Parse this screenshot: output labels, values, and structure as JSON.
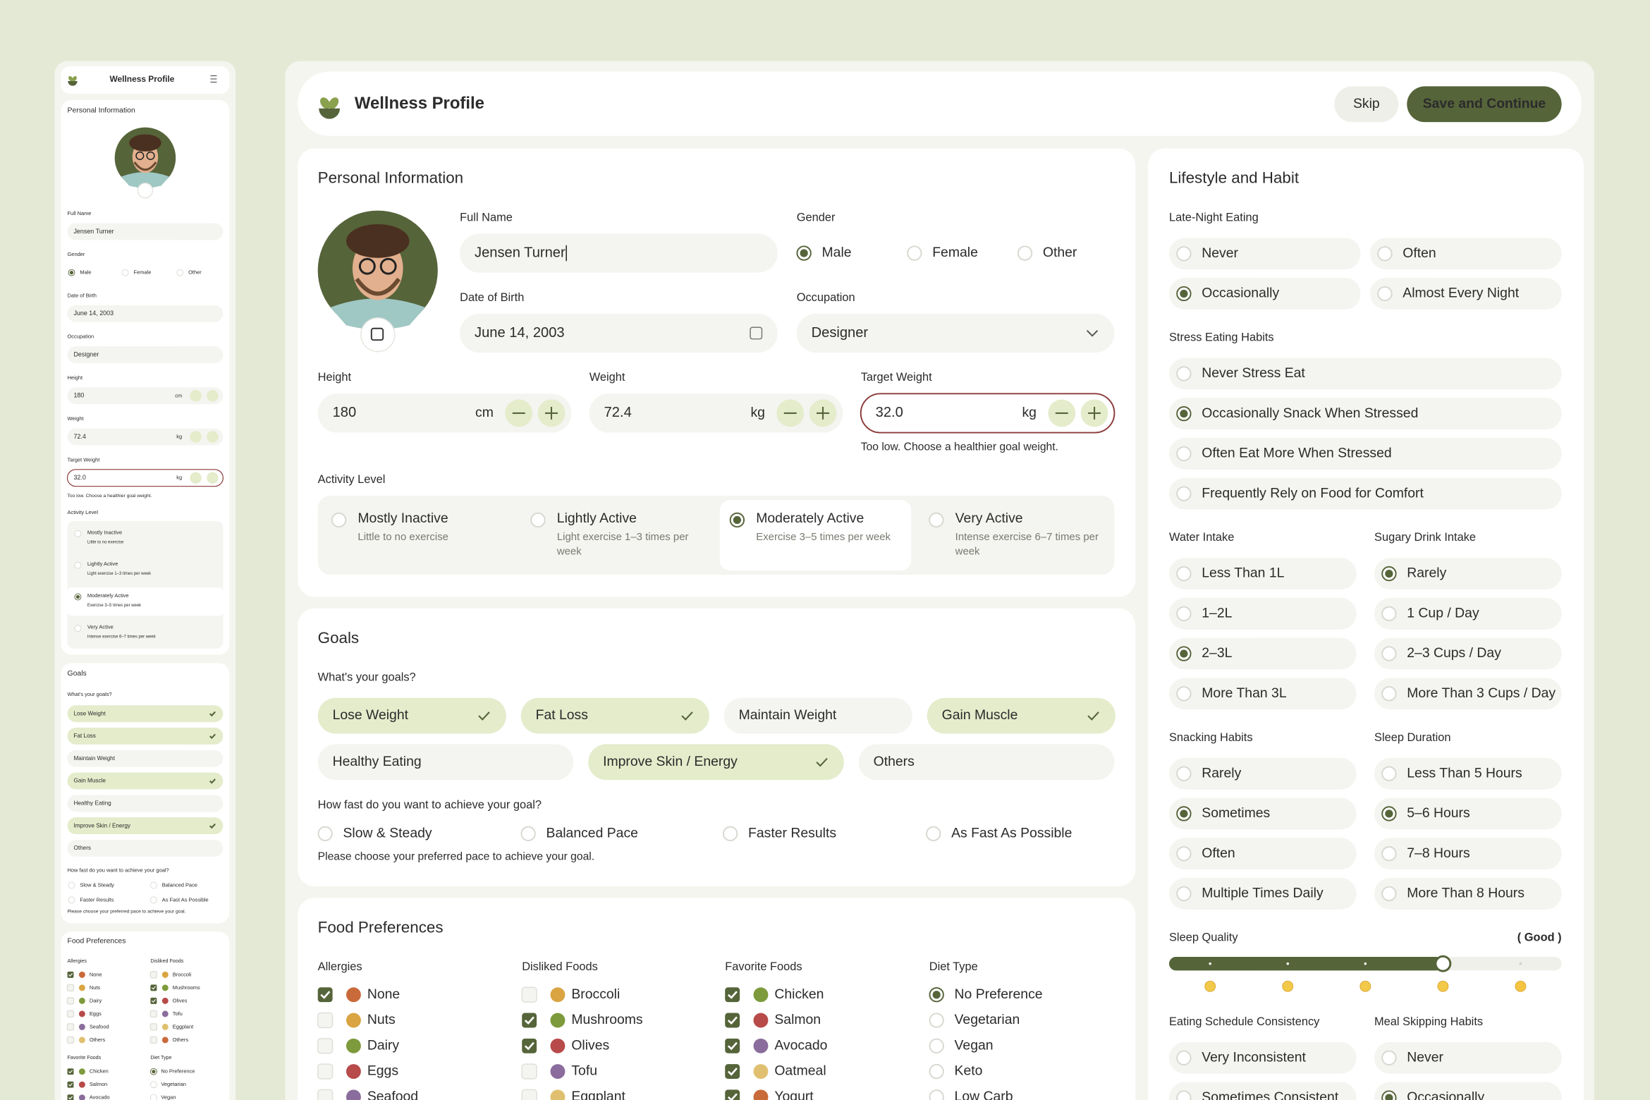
{
  "header": {
    "title": "Wellness Profile",
    "skip": "Skip",
    "save": "Save and Continue"
  },
  "personal": {
    "title": "Personal Information",
    "full_name": {
      "label": "Full Name",
      "value": "Jensen Turner"
    },
    "gender": {
      "label": "Gender",
      "options": [
        "Male",
        "Female",
        "Other"
      ],
      "selected": 0
    },
    "dob": {
      "label": "Date of Birth",
      "value": "June 14, 2003"
    },
    "occupation": {
      "label": "Occupation",
      "value": "Designer"
    },
    "height": {
      "label": "Height",
      "value": "180",
      "unit": "cm"
    },
    "weight": {
      "label": "Weight",
      "value": "72.4",
      "unit": "kg"
    },
    "target": {
      "label": "Target Weight",
      "value": "32.0",
      "unit": "kg",
      "error": "Too low. Choose a healthier goal weight."
    },
    "activity": {
      "label": "Activity Level",
      "selected": 2,
      "options": [
        {
          "name": "Mostly Inactive",
          "desc": "Little to no exercise"
        },
        {
          "name": "Lightly Active",
          "desc": "Light exercise 1–3 times per week"
        },
        {
          "name": "Moderately Active",
          "desc": "Exercise 3–5 times per week"
        },
        {
          "name": "Very Active",
          "desc": "Intense exercise 6–7 times per week"
        }
      ]
    }
  },
  "goals": {
    "title": "Goals",
    "question": "What's your goals?",
    "options": [
      {
        "label": "Lose Weight",
        "checked": true
      },
      {
        "label": "Fat Loss",
        "checked": true
      },
      {
        "label": "Maintain Weight",
        "checked": false
      },
      {
        "label": "Gain Muscle",
        "checked": true
      },
      {
        "label": "Healthy Eating",
        "checked": false
      },
      {
        "label": "Improve Skin / Energy",
        "checked": true
      },
      {
        "label": "Others",
        "checked": false
      }
    ],
    "pace": {
      "question": "How fast do you want to achieve your goal?",
      "options": [
        "Slow & Steady",
        "Balanced Pace",
        "Faster Results",
        "As Fast As Possible"
      ],
      "error": "Please choose your preferred pace to achieve your goal."
    }
  },
  "food": {
    "title": "Food Preferences",
    "groups": [
      {
        "label": "Allergies",
        "kind": "checkbox",
        "items": [
          {
            "label": "None",
            "checked": true
          },
          {
            "label": "Nuts",
            "checked": false
          },
          {
            "label": "Dairy",
            "checked": false
          },
          {
            "label": "Eggs",
            "checked": false
          },
          {
            "label": "Seafood",
            "checked": false
          },
          {
            "label": "Others",
            "checked": false
          }
        ]
      },
      {
        "label": "Disliked Foods",
        "kind": "checkbox",
        "items": [
          {
            "label": "Broccoli",
            "checked": false
          },
          {
            "label": "Mushrooms",
            "checked": true
          },
          {
            "label": "Olives",
            "checked": true
          },
          {
            "label": "Tofu",
            "checked": false
          },
          {
            "label": "Eggplant",
            "checked": false
          },
          {
            "label": "Others",
            "checked": false
          }
        ]
      },
      {
        "label": "Favorite Foods",
        "kind": "checkbox",
        "items": [
          {
            "label": "Chicken",
            "checked": true
          },
          {
            "label": "Salmon",
            "checked": true
          },
          {
            "label": "Avocado",
            "checked": true
          },
          {
            "label": "Oatmeal",
            "checked": true
          },
          {
            "label": "Yogurt",
            "checked": true
          }
        ]
      },
      {
        "label": "Diet Type",
        "kind": "radio",
        "items": [
          {
            "label": "No Preference",
            "checked": true
          },
          {
            "label": "Vegetarian",
            "checked": false
          },
          {
            "label": "Vegan",
            "checked": false
          },
          {
            "label": "Keto",
            "checked": false
          },
          {
            "label": "Low Carb",
            "checked": false
          }
        ]
      }
    ]
  },
  "lifestyle": {
    "title": "Lifestyle and Habit",
    "late_night": {
      "label": "Late-Night Eating",
      "options": [
        "Never",
        "Often",
        "Occasionally",
        "Almost Every Night"
      ],
      "selected": 2
    },
    "stress": {
      "label": "Stress Eating Habits",
      "options": [
        "Never Stress Eat",
        "Occasionally Snack When Stressed",
        "Often Eat More When Stressed",
        "Frequently Rely on Food for Comfort"
      ],
      "selected": 1
    },
    "water": {
      "label": "Water Intake",
      "options": [
        "Less Than 1L",
        "1–2L",
        "2–3L",
        "More Than 3L"
      ],
      "selected": 2
    },
    "sugary": {
      "label": "Sugary Drink Intake",
      "options": [
        "Rarely",
        "1 Cup / Day",
        "2–3 Cups / Day",
        "More Than 3 Cups / Day"
      ],
      "selected": 0
    },
    "snacking": {
      "label": "Snacking Habits",
      "options": [
        "Rarely",
        "Sometimes",
        "Often",
        "Multiple Times Daily"
      ],
      "selected": 1
    },
    "sleep_duration": {
      "label": "Sleep Duration",
      "options": [
        "Less Than 5 Hours",
        "5–6 Hours",
        "7–8 Hours",
        "More Than 8 Hours"
      ],
      "selected": 1
    },
    "sleep_quality": {
      "label": "Sleep Quality",
      "value": "( Good )",
      "level": 4,
      "levels": 5
    },
    "schedule": {
      "label": "Eating Schedule Consistency",
      "options": [
        "Very Inconsistent",
        "Sometimes Consistent"
      ],
      "selected": null
    },
    "skipping": {
      "label": "Meal Skipping Habits",
      "options": [
        "Never",
        "Occasionally"
      ],
      "selected": 1
    }
  }
}
